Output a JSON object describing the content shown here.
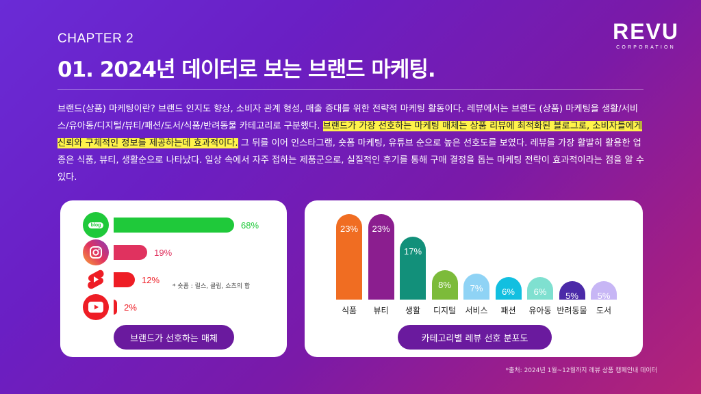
{
  "header": {
    "chapter": "CHAPTER 2",
    "title": "01. 2024년 데이터로 보는 브랜드 마케팅.",
    "logo_main": "REVU",
    "logo_sub": "CORPORATION"
  },
  "body": {
    "p1": "브랜드(상품) 마케팅이란? 브랜드 인지도 향상, 소비자 관계 형성, 매출 증대를 위한 전략적 마케팅 활동이다. 레뷰에서는 브랜드 (상품) 마케팅을 생활/서비스/유아동/디지털/뷰티/패션/도서/식품/반려동물 카테고리로 구분했다. ",
    "highlight": "브랜드가 가장 선호하는 마케팅 매체는 상품 리뷰에 최적화된 블로그로, 소비자들에게 신뢰와 구체적인 정보를 제공하는데 효과적이다.",
    "p2": " 그 뒤를 이어 인스타그램, 숏폼 마케팅, 유튜브 순으로 높은 선호도를 보였다. 레뷰를 가장 활발히 활용한 업종은 식품, 뷰티, 생활순으로 나타났다. 일상 속에서 자주 접하는 제품군으로, 실질적인 후기를 통해 구매 결정을 돕는 마케팅 전략이 효과적이라는 점을 알 수 있다."
  },
  "media_card": {
    "pill": "브랜드가 선호하는 매체",
    "note": "* 숏폼 : 릴스, 클립, 쇼츠의 합",
    "blog_badge": "blog"
  },
  "category_card": {
    "pill": "카테고리별 레뷰 선호 분포도"
  },
  "source": "*출처: 2024년 1월~12월까지 레뷰 상품 캠페인내 데이터",
  "chart_data": [
    {
      "type": "bar",
      "orientation": "horizontal",
      "categories": [
        "블로그",
        "인스타그램",
        "숏폼",
        "유튜브"
      ],
      "values": [
        68,
        19,
        12,
        2
      ],
      "labels": [
        "68%",
        "19%",
        "12%",
        "2%"
      ],
      "icons": [
        "blog-icon",
        "instagram-icon",
        "shorts-icon",
        "youtube-icon"
      ],
      "colors": [
        "#1fc93a",
        "#e0325f",
        "#ee1d25",
        "#ee1d25"
      ],
      "title": "브랜드가 선호하는 매체"
    },
    {
      "type": "bar",
      "categories": [
        "식품",
        "뷰티",
        "생활",
        "디지털",
        "서비스",
        "패션",
        "유아동",
        "반려동물",
        "도서"
      ],
      "values": [
        23,
        23,
        17,
        8,
        7,
        6,
        6,
        5,
        5
      ],
      "labels": [
        "23%",
        "23%",
        "17%",
        "8%",
        "7%",
        "6%",
        "6%",
        "5%",
        "5%"
      ],
      "colors": [
        "#f06d22",
        "#8b1e8f",
        "#12907a",
        "#7cbb3a",
        "#8fd3f5",
        "#12bfe0",
        "#7fe0d0",
        "#4b2aa8",
        "#c7b6f5"
      ],
      "title": "카테고리별 레뷰 선호 분포도"
    }
  ]
}
